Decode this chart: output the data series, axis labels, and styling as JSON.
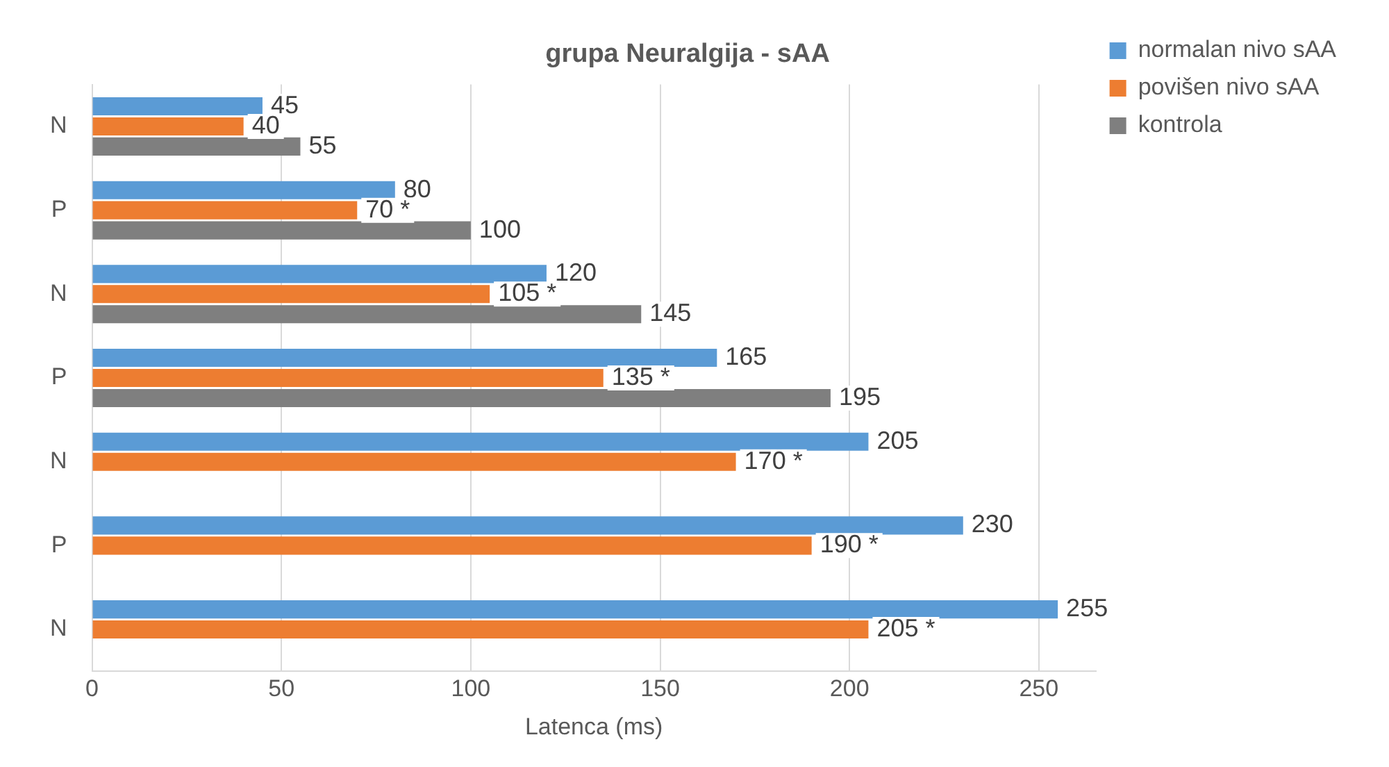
{
  "chart_data": {
    "type": "bar",
    "orientation": "horizontal",
    "title": "grupa Neuralgija - sAA",
    "xlabel": "Latenca (ms)",
    "categories": [
      "N",
      "P",
      "N",
      "P",
      "N",
      "P",
      "N"
    ],
    "series": [
      {
        "name": "normalan nivo sAA",
        "color": "#5b9bd5",
        "values": [
          45,
          80,
          120,
          165,
          205,
          230,
          255
        ]
      },
      {
        "name": "povišen nivo sAA",
        "color": "#ed7d31",
        "values": [
          40,
          70,
          105,
          135,
          170,
          190,
          205
        ],
        "value_labels": [
          "40",
          "70 *",
          "105 *",
          "135 *",
          "170 *",
          "190 *",
          "205 *"
        ]
      },
      {
        "name": "kontrola",
        "color": "#7f7f7f",
        "values": [
          55,
          100,
          145,
          195,
          null,
          null,
          null
        ]
      }
    ],
    "xlim": [
      0,
      265
    ],
    "xticks": [
      0,
      50,
      100,
      150,
      200,
      250
    ],
    "grid": "x",
    "legend": "right",
    "data_labels": true
  }
}
